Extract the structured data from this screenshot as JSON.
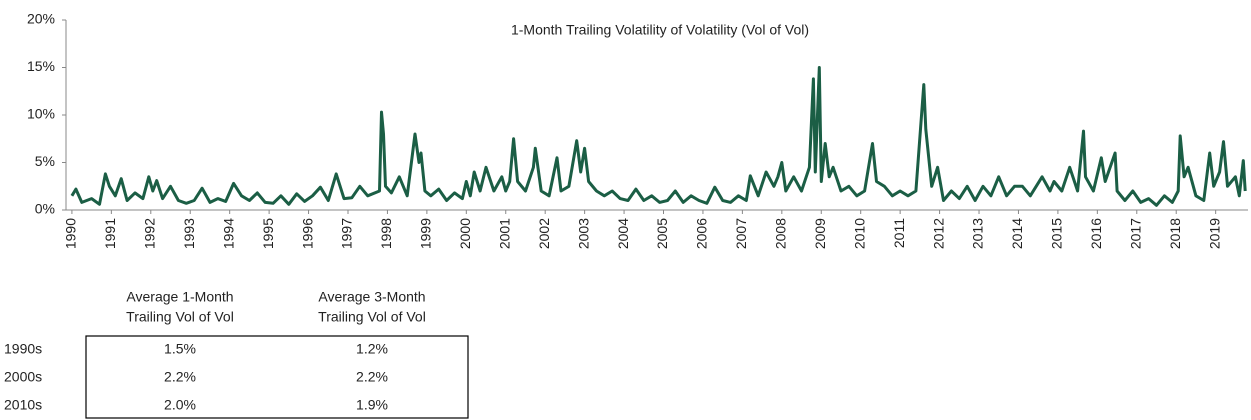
{
  "chart_data": {
    "type": "line",
    "title": "1-Month Trailing Volatility of Volatility (Vol of Vol)",
    "color": "#1b5e45",
    "xlim": [
      1989.85,
      2019.82
    ],
    "ylim": [
      0,
      20
    ],
    "xticks": [
      1990,
      1991,
      1992,
      1993,
      1994,
      1995,
      1996,
      1997,
      1998,
      1999,
      2000,
      2001,
      2002,
      2003,
      2004,
      2005,
      2006,
      2007,
      2008,
      2009,
      2010,
      2011,
      2012,
      2013,
      2014,
      2015,
      2016,
      2017,
      2018,
      2019
    ],
    "yticks": [
      {
        "value": 0,
        "label": "0%"
      },
      {
        "value": 5,
        "label": "5%"
      },
      {
        "value": 10,
        "label": "10%"
      },
      {
        "value": 15,
        "label": "15%"
      },
      {
        "value": 20,
        "label": "20%"
      }
    ],
    "x": [
      1990.0,
      1990.1,
      1990.25,
      1990.5,
      1990.7,
      1990.85,
      1990.95,
      1991.1,
      1991.25,
      1991.4,
      1991.6,
      1991.8,
      1991.95,
      1992.05,
      1992.15,
      1992.3,
      1992.5,
      1992.7,
      1992.9,
      1993.1,
      1993.3,
      1993.5,
      1993.7,
      1993.9,
      1994.1,
      1994.3,
      1994.5,
      1994.7,
      1994.9,
      1995.1,
      1995.3,
      1995.5,
      1995.7,
      1995.9,
      1996.1,
      1996.3,
      1996.5,
      1996.7,
      1996.9,
      1997.1,
      1997.3,
      1997.5,
      1997.8,
      1997.85,
      1997.9,
      1997.95,
      1998.1,
      1998.3,
      1998.5,
      1998.7,
      1998.8,
      1998.85,
      1998.95,
      1999.1,
      1999.3,
      1999.5,
      1999.7,
      1999.9,
      2000.0,
      2000.1,
      2000.2,
      2000.35,
      2000.5,
      2000.7,
      2000.9,
      2001.0,
      2001.1,
      2001.2,
      2001.3,
      2001.5,
      2001.7,
      2001.75,
      2001.9,
      2002.1,
      2002.3,
      2002.4,
      2002.6,
      2002.8,
      2002.9,
      2003.0,
      2003.1,
      2003.3,
      2003.5,
      2003.7,
      2003.9,
      2004.1,
      2004.3,
      2004.5,
      2004.7,
      2004.9,
      2005.1,
      2005.3,
      2005.5,
      2005.7,
      2005.9,
      2006.1,
      2006.3,
      2006.5,
      2006.7,
      2006.9,
      2007.1,
      2007.2,
      2007.4,
      2007.6,
      2007.8,
      2007.9,
      2008.0,
      2008.1,
      2008.3,
      2008.5,
      2008.7,
      2008.8,
      2008.85,
      2008.95,
      2009.0,
      2009.1,
      2009.2,
      2009.3,
      2009.5,
      2009.7,
      2009.9,
      2010.1,
      2010.3,
      2010.4,
      2010.6,
      2010.8,
      2011.0,
      2011.2,
      2011.4,
      2011.6,
      2011.65,
      2011.8,
      2011.95,
      2012.1,
      2012.3,
      2012.5,
      2012.7,
      2012.9,
      2013.1,
      2013.3,
      2013.5,
      2013.7,
      2013.9,
      2014.1,
      2014.3,
      2014.6,
      2014.8,
      2014.9,
      2015.1,
      2015.3,
      2015.5,
      2015.65,
      2015.7,
      2015.9,
      2016.1,
      2016.2,
      2016.45,
      2016.5,
      2016.7,
      2016.9,
      2017.1,
      2017.3,
      2017.5,
      2017.7,
      2017.9,
      2018.05,
      2018.1,
      2018.2,
      2018.3,
      2018.5,
      2018.7,
      2018.85,
      2018.95,
      2019.1,
      2019.2,
      2019.3,
      2019.5,
      2019.6,
      2019.7,
      2019.75
    ],
    "values": [
      1.5,
      2.2,
      0.8,
      1.2,
      0.6,
      3.8,
      2.5,
      1.5,
      3.3,
      1.0,
      1.8,
      1.2,
      3.5,
      2.0,
      3.1,
      1.2,
      2.5,
      1.0,
      0.7,
      1.0,
      2.3,
      0.8,
      1.2,
      0.9,
      2.8,
      1.5,
      1.0,
      1.8,
      0.8,
      0.7,
      1.5,
      0.6,
      1.7,
      0.9,
      1.5,
      2.4,
      1.0,
      3.8,
      1.2,
      1.3,
      2.5,
      1.5,
      2.0,
      10.3,
      8.0,
      2.5,
      1.8,
      3.5,
      1.5,
      8.0,
      5.0,
      6.0,
      2.0,
      1.5,
      2.2,
      1.0,
      1.8,
      1.2,
      3.0,
      1.5,
      4.0,
      2.0,
      4.5,
      2.0,
      3.5,
      2.0,
      3.0,
      7.5,
      3.0,
      2.0,
      4.5,
      6.5,
      2.0,
      1.5,
      5.5,
      2.0,
      2.5,
      7.3,
      4.0,
      6.5,
      3.0,
      2.0,
      1.5,
      2.0,
      1.2,
      1.0,
      2.2,
      1.0,
      1.5,
      0.8,
      1.0,
      2.0,
      0.8,
      1.5,
      1.0,
      0.7,
      2.4,
      1.0,
      0.8,
      1.5,
      1.0,
      3.6,
      1.5,
      4.0,
      2.5,
      3.5,
      5.0,
      2.0,
      3.5,
      2.0,
      4.5,
      13.8,
      4.0,
      15.0,
      3.0,
      7.0,
      3.5,
      4.5,
      2.0,
      2.5,
      1.5,
      2.0,
      7.0,
      3.0,
      2.5,
      1.5,
      2.0,
      1.5,
      2.0,
      13.2,
      8.5,
      2.5,
      4.5,
      1.0,
      2.0,
      1.2,
      2.5,
      1.0,
      2.5,
      1.5,
      3.5,
      1.5,
      2.5,
      2.5,
      1.5,
      3.5,
      2.0,
      3.0,
      2.0,
      4.5,
      2.0,
      8.3,
      3.5,
      2.0,
      5.5,
      3.0,
      6.0,
      2.0,
      1.0,
      2.0,
      0.8,
      1.2,
      0.5,
      1.5,
      0.8,
      2.0,
      7.8,
      3.5,
      4.5,
      1.5,
      1.0,
      6.0,
      2.5,
      4.0,
      7.2,
      2.5,
      3.5,
      1.5,
      5.2,
      2.0
    ]
  },
  "table": {
    "columns": [
      [
        "Average 1-Month",
        "Trailing Vol of Vol"
      ],
      [
        "Average 3-Month",
        "Trailing Vol of Vol"
      ]
    ],
    "rows": [
      [
        "1990s",
        "1.5%",
        "1.2%"
      ],
      [
        "2000s",
        "2.2%",
        "2.2%"
      ],
      [
        "2010s",
        "2.0%",
        "1.9%"
      ]
    ]
  }
}
